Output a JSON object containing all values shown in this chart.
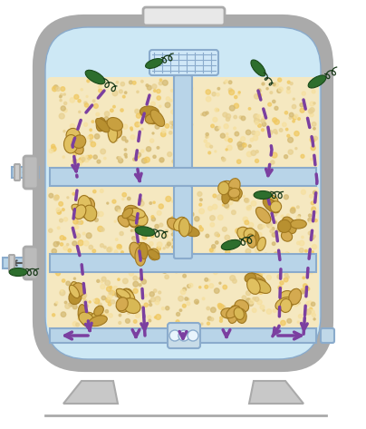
{
  "bg_color": "#ffffff",
  "tank_outer_color": "#aaaaaa",
  "tank_inner_color": "#cde8f5",
  "sand_color": "#f5e8c0",
  "pipe_color": "#b8d4e8",
  "pipe_stroke": "#8aabcc",
  "purple_arrow": "#7b3fa0",
  "bacteria_color": "#2d6e2d",
  "gravel_color": "#d4b870",
  "gravel_stroke": "#b8952a",
  "fig_width": 4.04,
  "fig_height": 4.73
}
